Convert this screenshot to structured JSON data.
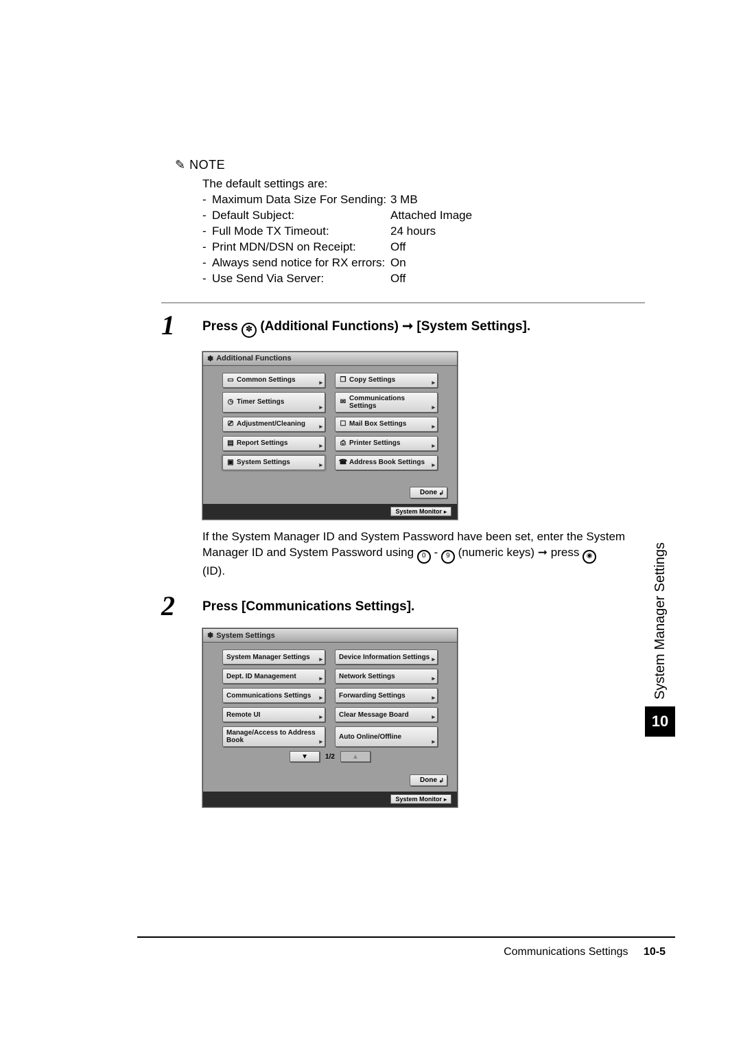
{
  "note": {
    "heading": "NOTE",
    "intro": "The default settings are:",
    "rows": [
      {
        "label": "Maximum Data Size For Sending:",
        "value": "3 MB"
      },
      {
        "label": "Default Subject:",
        "value": "Attached Image"
      },
      {
        "label": "Full Mode TX Timeout:",
        "value": "24 hours"
      },
      {
        "label": "Print MDN/DSN on Receipt:",
        "value": "Off"
      },
      {
        "label": "Always send notice for RX errors:",
        "value": "On"
      },
      {
        "label": "Use Send Via Server:",
        "value": "Off"
      }
    ]
  },
  "step1": {
    "num": "1",
    "title_pre": "Press ",
    "title_mid": " (Additional Functions) ",
    "title_arrow": "➞",
    "title_post": " [System Settings].",
    "screenshot": {
      "title": "Additional Functions",
      "icon": "✽",
      "left": [
        "Common Settings",
        "Timer Settings",
        "Adjustment/Cleaning",
        "Report Settings",
        "System Settings"
      ],
      "right": [
        "Copy Settings",
        "Communications Settings",
        "Mail Box Settings",
        "Printer Settings",
        "Address Book Settings"
      ],
      "done": "Done",
      "sysmon": "System Monitor"
    },
    "after": "If the System Manager ID and System Password have been set, enter the System Manager ID and System Password using ",
    "after2": " - ",
    "after3": " (numeric keys) ",
    "after4": " press ",
    "after5": "(ID)."
  },
  "step2": {
    "num": "2",
    "title": "Press [Communications Settings].",
    "screenshot": {
      "title": "System Settings",
      "icon": "✽",
      "left": [
        "System Manager Settings",
        "Dept. ID Management",
        "Communications Settings",
        "Remote UI",
        "Manage/Access to Address Book"
      ],
      "right": [
        "Device Information Settings",
        "Network Settings",
        "Forwarding Settings",
        "Clear Message Board",
        "Auto Online/Offline"
      ],
      "pager": "1/2",
      "done": "Done",
      "sysmon": "System Monitor"
    }
  },
  "side": {
    "text": "System Manager Settings",
    "chapter": "10"
  },
  "footer": {
    "section": "Communications Settings",
    "page": "10-5"
  }
}
